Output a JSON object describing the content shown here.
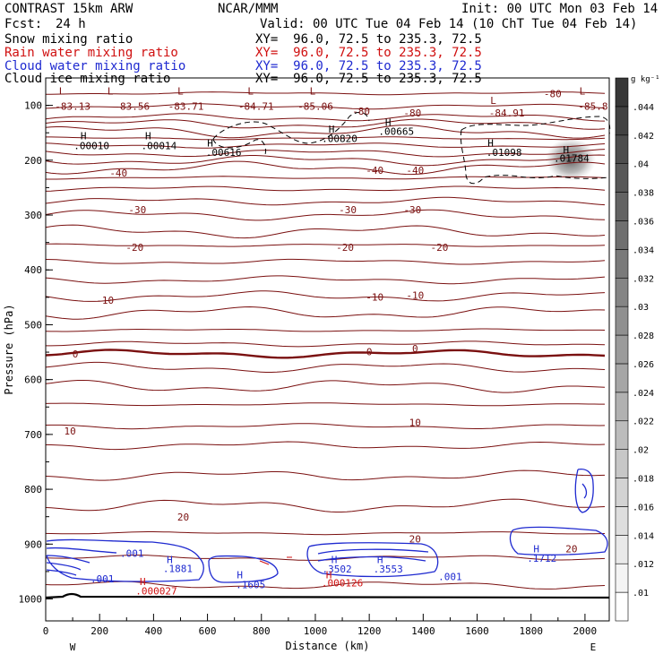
{
  "header": {
    "model": "CONTRAST 15km ARW",
    "center": "NCAR/MMM",
    "init": "Init: 00 UTC Mon 03 Feb 14",
    "fcst_label": "Fcst:",
    "fcst_value": "24 h",
    "valid": "Valid: 00 UTC Tue 04 Feb 14 (10 ChT Tue 04 Feb 14)",
    "fields": [
      {
        "name": "Snow mixing ratio",
        "xy": "XY=  96.0, 72.5 to 235.3, 72.5",
        "color": "#000000"
      },
      {
        "name": "Rain water mixing ratio",
        "xy": "XY=  96.0, 72.5 to 235.3, 72.5",
        "color": "#d01010"
      },
      {
        "name": "Cloud water mixing ratio",
        "xy": "XY=  96.0, 72.5 to 235.3, 72.5",
        "color": "#1f2ad0"
      },
      {
        "name": "Cloud ice mixing ratio",
        "xy": "XY=  96.0, 72.5 to 235.3, 72.5",
        "color": "#000000"
      }
    ]
  },
  "chart_data": {
    "type": "contour",
    "xlabel": "Distance (km)",
    "ylabel": "Pressure (hPa)",
    "xlim": [
      0,
      2090
    ],
    "ylim": [
      1040,
      50
    ],
    "x_ticks": [
      "0",
      "200",
      "400",
      "600",
      "800",
      "1000",
      "1200",
      "1400",
      "1600",
      "1800",
      "2000"
    ],
    "y_ticks": [
      "100",
      "200",
      "300",
      "400",
      "500",
      "600",
      "700",
      "800",
      "900",
      "1000"
    ],
    "x_end_labels": {
      "left": "W",
      "right": "E"
    },
    "colorbar": {
      "unit": "g kg⁻¹",
      "levels": [
        ".01",
        ".012",
        ".014",
        ".016",
        ".018",
        ".02",
        ".022",
        ".024",
        ".026",
        ".028",
        ".03",
        ".032",
        ".034",
        ".036",
        ".038",
        ".04",
        ".042",
        ".044"
      ]
    },
    "temperature_labels": [
      {
        "x": 100,
        "p": 108,
        "text": "-83.13"
      },
      {
        "x": 320,
        "p": 108,
        "text": "-83.56"
      },
      {
        "x": 520,
        "p": 108,
        "text": "-83.71"
      },
      {
        "x": 780,
        "p": 108,
        "text": "-84.71"
      },
      {
        "x": 1000,
        "p": 108,
        "text": "-85.06"
      },
      {
        "x": 1170,
        "p": 117,
        "text": "-80"
      },
      {
        "x": 1360,
        "p": 120,
        "text": "-80"
      },
      {
        "x": 1880,
        "p": 85,
        "text": "-80"
      },
      {
        "x": 1710,
        "p": 120,
        "text": "-84.91"
      },
      {
        "x": 2030,
        "p": 108,
        "text": "-85.8"
      },
      {
        "x": 270,
        "p": 230,
        "text": "-40"
      },
      {
        "x": 1220,
        "p": 225,
        "text": "-40"
      },
      {
        "x": 1370,
        "p": 225,
        "text": "-40"
      },
      {
        "x": 340,
        "p": 297,
        "text": "-30"
      },
      {
        "x": 1120,
        "p": 297,
        "text": "-30"
      },
      {
        "x": 1360,
        "p": 297,
        "text": "-30"
      },
      {
        "x": 330,
        "p": 365,
        "text": "-20"
      },
      {
        "x": 1110,
        "p": 365,
        "text": "-20"
      },
      {
        "x": 1460,
        "p": 365,
        "text": "-20"
      },
      {
        "x": 220,
        "p": 462,
        "text": "-10"
      },
      {
        "x": 1220,
        "p": 456,
        "text": "-10"
      },
      {
        "x": 1370,
        "p": 453,
        "text": "-10"
      },
      {
        "x": 110,
        "p": 560,
        "text": "0"
      },
      {
        "x": 1200,
        "p": 556,
        "text": "0"
      },
      {
        "x": 1370,
        "p": 550,
        "text": "0"
      },
      {
        "x": 1370,
        "p": 685,
        "text": "10"
      },
      {
        "x": 90,
        "p": 700,
        "text": "10"
      },
      {
        "x": 510,
        "p": 857,
        "text": "20"
      },
      {
        "x": 1370,
        "p": 897,
        "text": "20"
      },
      {
        "x": 1950,
        "p": 915,
        "text": "20"
      }
    ],
    "snow_labels": [
      {
        "x": 170,
        "p": 180,
        "text": ".00010"
      },
      {
        "x": 420,
        "p": 180,
        "text": ".00014"
      },
      {
        "x": 660,
        "p": 192,
        "text": ".00616"
      },
      {
        "x": 1090,
        "p": 167,
        "text": ".00820"
      },
      {
        "x": 1300,
        "p": 154,
        "text": ".00665"
      },
      {
        "x": 1700,
        "p": 192,
        "text": ".01098"
      },
      {
        "x": 1950,
        "p": 203,
        "text": ".01784"
      }
    ],
    "cloud_water_labels": [
      {
        "x": 320,
        "p": 923,
        "text": ".001"
      },
      {
        "x": 210,
        "p": 970,
        "text": ".001"
      },
      {
        "x": 490,
        "p": 951,
        "text": ".1881"
      },
      {
        "x": 760,
        "p": 980,
        "text": ".1605"
      },
      {
        "x": 1080,
        "p": 952,
        "text": ".3502"
      },
      {
        "x": 1270,
        "p": 952,
        "text": ".3553"
      },
      {
        "x": 1500,
        "p": 966,
        "text": ".001"
      },
      {
        "x": 1840,
        "p": 932,
        "text": ".1712"
      }
    ],
    "rain_labels": [
      {
        "x": 410,
        "p": 992,
        "text": ".000027"
      },
      {
        "x": 1100,
        "p": 977,
        "text": ".000126"
      }
    ],
    "extrema_markers": [
      {
        "x": 60,
        "p": 80,
        "text": "L",
        "kind": "temperature"
      },
      {
        "x": 240,
        "p": 80,
        "text": "L",
        "kind": "temperature"
      },
      {
        "x": 500,
        "p": 80,
        "text": "L",
        "kind": "temperature"
      },
      {
        "x": 760,
        "p": 80,
        "text": "L",
        "kind": "temperature"
      },
      {
        "x": 990,
        "p": 80,
        "text": "L",
        "kind": "temperature"
      },
      {
        "x": 1660,
        "p": 97,
        "text": "L",
        "kind": "temperature"
      },
      {
        "x": 1990,
        "p": 80,
        "text": "L",
        "kind": "temperature"
      },
      {
        "x": 140,
        "p": 162,
        "text": "H",
        "kind": "snow"
      },
      {
        "x": 380,
        "p": 162,
        "text": "H",
        "kind": "snow"
      },
      {
        "x": 610,
        "p": 175,
        "text": "H",
        "kind": "snow"
      },
      {
        "x": 1060,
        "p": 150,
        "text": "H",
        "kind": "snow"
      },
      {
        "x": 1270,
        "p": 137,
        "text": "H",
        "kind": "snow"
      },
      {
        "x": 1650,
        "p": 175,
        "text": "H",
        "kind": "snow"
      },
      {
        "x": 1930,
        "p": 187,
        "text": "H",
        "kind": "snow"
      },
      {
        "x": 460,
        "p": 935,
        "text": "H",
        "kind": "cloud_water"
      },
      {
        "x": 720,
        "p": 962,
        "text": "H",
        "kind": "cloud_water"
      },
      {
        "x": 1070,
        "p": 935,
        "text": "H",
        "kind": "cloud_water"
      },
      {
        "x": 1240,
        "p": 935,
        "text": "H",
        "kind": "cloud_water"
      },
      {
        "x": 1820,
        "p": 915,
        "text": "H",
        "kind": "cloud_water"
      },
      {
        "x": 360,
        "p": 975,
        "text": "H",
        "kind": "rain"
      },
      {
        "x": 1050,
        "p": 962,
        "text": "H",
        "kind": "rain"
      }
    ],
    "isotherm_levels_hPa": [
      78,
      102,
      122,
      134,
      148,
      160,
      173,
      187,
      200,
      214,
      232,
      252,
      275,
      300,
      330,
      355,
      385,
      418,
      448,
      478,
      510,
      535,
      553,
      578,
      612,
      645,
      685,
      720,
      775,
      830,
      880,
      925,
      975
    ]
  }
}
